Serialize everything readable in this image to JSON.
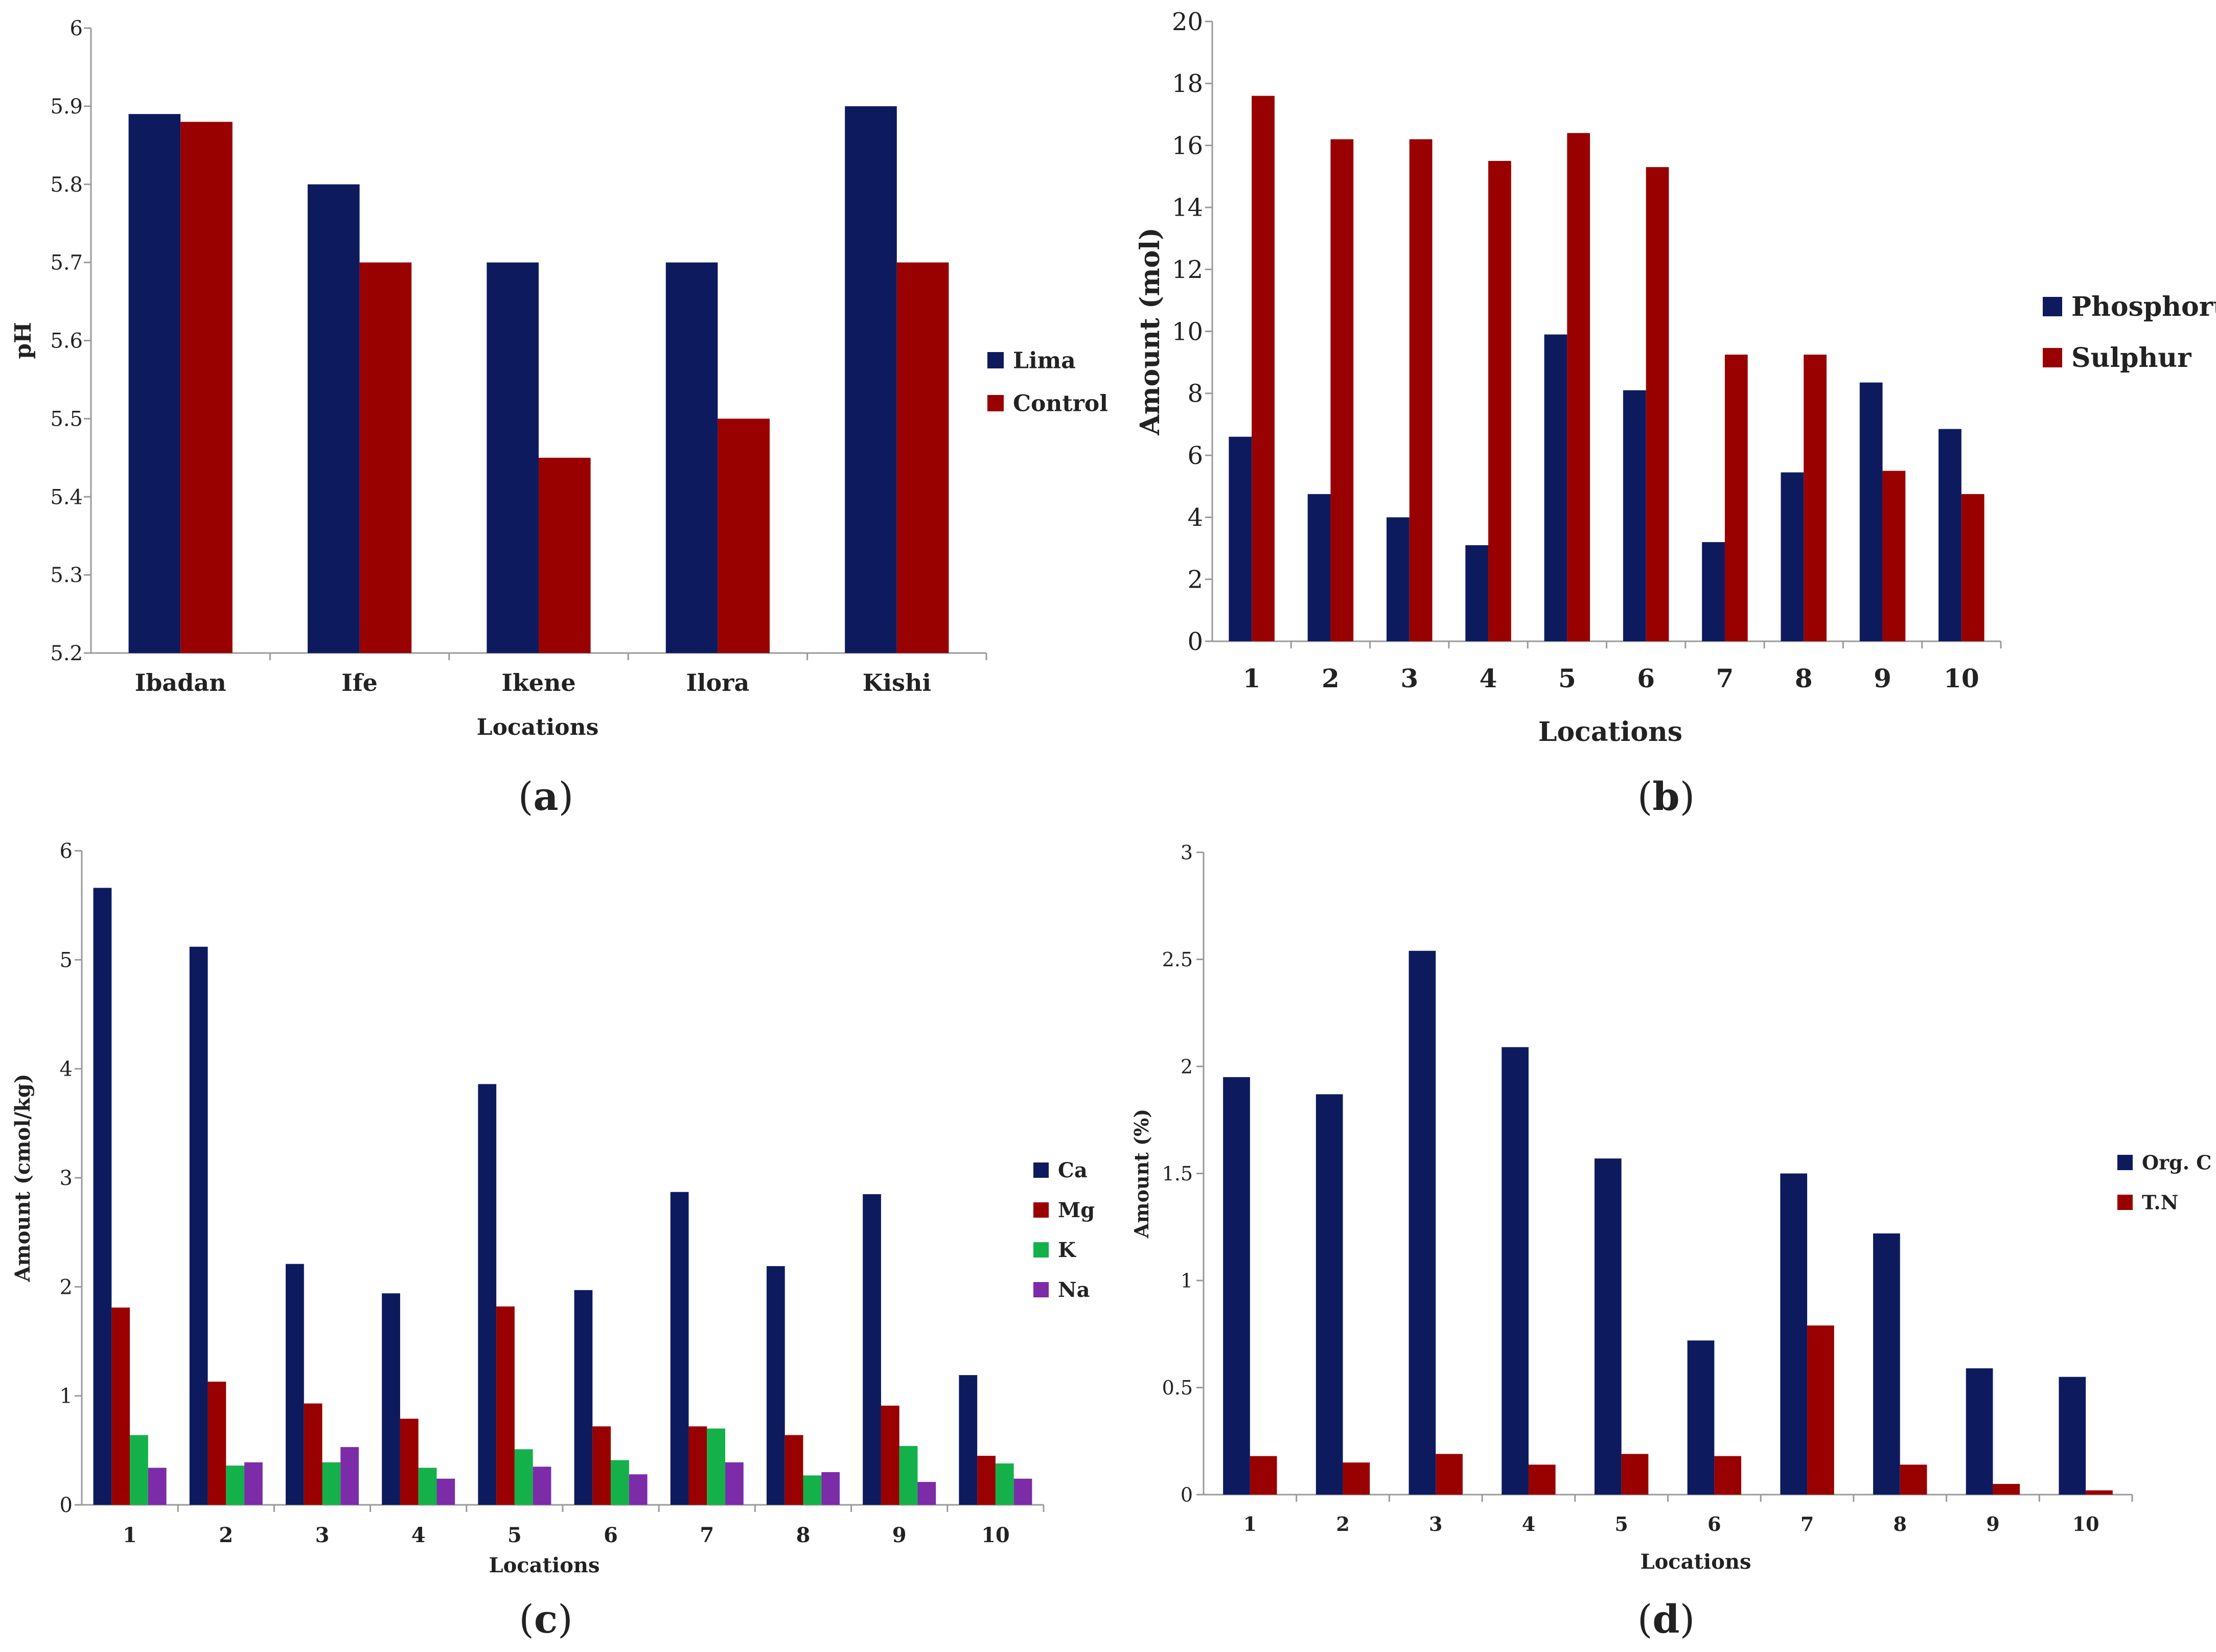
{
  "colors": {
    "navy": "#0d1b5e",
    "red": "#990000",
    "green": "#14b14a",
    "purple": "#7c2ca8",
    "axis": "#9a9a9a"
  },
  "chart_data": [
    {
      "id": "a",
      "type": "bar",
      "caption": "a",
      "categories": [
        "Ibadan",
        "Ife",
        "Ikene",
        "Ilora",
        "Kishi"
      ],
      "series": [
        {
          "name": "Lima",
          "values": [
            5.89,
            5.8,
            5.7,
            5.7,
            5.9
          ]
        },
        {
          "name": "Control",
          "values": [
            5.88,
            5.7,
            5.45,
            5.5,
            5.7
          ]
        }
      ],
      "xlabel": "Locations",
      "ylabel": "pH",
      "ylim": [
        5.2,
        6
      ],
      "yticks": [
        "5.2",
        "5.3",
        "5.4",
        "5.5",
        "5.6",
        "5.7",
        "5.8",
        "5.9",
        "6"
      ],
      "legend": "right"
    },
    {
      "id": "b",
      "type": "bar",
      "caption": "b",
      "categories": [
        "1",
        "2",
        "3",
        "4",
        "5",
        "6",
        "7",
        "8",
        "9",
        "10"
      ],
      "series": [
        {
          "name": "Phosphorus",
          "values": [
            6.6,
            4.75,
            4.0,
            3.1,
            9.9,
            8.1,
            3.2,
            5.45,
            8.35,
            6.85
          ]
        },
        {
          "name": "Sulphur",
          "values": [
            17.6,
            16.2,
            16.2,
            15.5,
            16.4,
            15.3,
            9.25,
            9.25,
            5.5,
            4.75
          ]
        }
      ],
      "xlabel": "Locations",
      "ylabel": "Amount (mol)",
      "ylim": [
        0,
        20
      ],
      "yticks": [
        "0",
        "2",
        "4",
        "6",
        "8",
        "10",
        "12",
        "14",
        "16",
        "18",
        "20"
      ],
      "legend": "right"
    },
    {
      "id": "c",
      "type": "bar",
      "caption": "c",
      "categories": [
        "1",
        "2",
        "3",
        "4",
        "5",
        "6",
        "7",
        "8",
        "9",
        "10"
      ],
      "series": [
        {
          "name": "Ca",
          "values": [
            5.66,
            5.12,
            2.21,
            1.94,
            3.86,
            1.97,
            2.87,
            2.19,
            2.85,
            1.19
          ]
        },
        {
          "name": "Mg",
          "values": [
            1.81,
            1.13,
            0.93,
            0.79,
            1.82,
            0.72,
            0.72,
            0.64,
            0.91,
            0.45
          ]
        },
        {
          "name": "K",
          "values": [
            0.64,
            0.36,
            0.39,
            0.34,
            0.51,
            0.41,
            0.7,
            0.27,
            0.54,
            0.38
          ]
        },
        {
          "name": "Na",
          "values": [
            0.34,
            0.39,
            0.53,
            0.24,
            0.35,
            0.28,
            0.39,
            0.3,
            0.21,
            0.24
          ]
        }
      ],
      "xlabel": "Locations",
      "ylabel": "Amount (cmol/kg)",
      "ylim": [
        0,
        6
      ],
      "yticks": [
        "0",
        "1",
        "2",
        "3",
        "4",
        "5",
        "6"
      ],
      "legend": "right"
    },
    {
      "id": "d",
      "type": "bar",
      "caption": "d",
      "categories": [
        "1",
        "2",
        "3",
        "4",
        "5",
        "6",
        "7",
        "8",
        "9",
        "10"
      ],
      "series": [
        {
          "name": "Org. C",
          "values": [
            1.95,
            1.87,
            2.54,
            2.09,
            1.57,
            0.72,
            1.5,
            1.22,
            0.59,
            0.55
          ]
        },
        {
          "name": "T.N",
          "values": [
            0.18,
            0.15,
            0.19,
            0.14,
            0.19,
            0.18,
            0.79,
            0.14,
            0.05,
            0.02
          ]
        }
      ],
      "xlabel": "Locations",
      "ylabel": "Amount (%)",
      "ylim": [
        0,
        3
      ],
      "yticks": [
        "0",
        "0.5",
        "1",
        "1.5",
        "2",
        "2.5",
        "3"
      ],
      "legend": "right"
    }
  ]
}
